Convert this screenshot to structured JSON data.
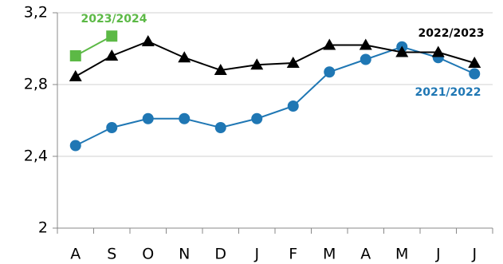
{
  "chart_data": {
    "type": "line",
    "categories": [
      "A",
      "S",
      "O",
      "N",
      "D",
      "J",
      "F",
      "M",
      "A",
      "M",
      "J",
      "J"
    ],
    "series": [
      {
        "name": "2021/2022",
        "color": "#1f77b4",
        "marker": "circle",
        "values": [
          2.46,
          2.56,
          2.61,
          2.61,
          2.56,
          2.61,
          2.68,
          2.87,
          2.94,
          3.01,
          2.95,
          2.86
        ]
      },
      {
        "name": "2022/2023",
        "color": "#000000",
        "marker": "triangle",
        "values": [
          2.845,
          2.96,
          3.04,
          2.95,
          2.88,
          2.91,
          2.92,
          3.02,
          3.02,
          2.98,
          2.98,
          2.92
        ]
      },
      {
        "name": "2023/2024",
        "color": "#5cb946",
        "marker": "square",
        "values": [
          2.96,
          3.07,
          null,
          null,
          null,
          null,
          null,
          null,
          null,
          null,
          null,
          null
        ]
      }
    ],
    "ylim": [
      2,
      3.2
    ],
    "yticks": [
      {
        "value": 2,
        "label": "2"
      },
      {
        "value": 2.4,
        "label": "2,4"
      },
      {
        "value": 2.8,
        "label": "2,8"
      },
      {
        "value": 3.2,
        "label": "3,2"
      }
    ],
    "grid": true
  }
}
